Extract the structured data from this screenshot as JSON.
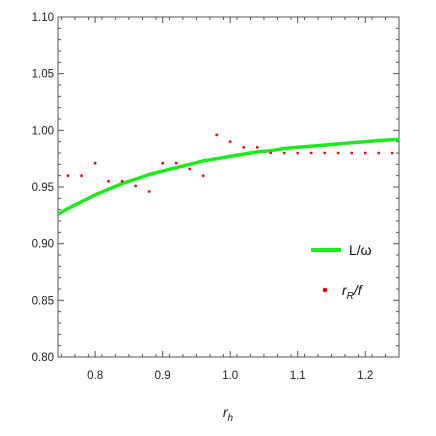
{
  "chart_data": {
    "type": "scatter",
    "xlabel": "r",
    "xlabel_sub": "h",
    "ylabel": "",
    "xlim": [
      0.745,
      1.25
    ],
    "ylim": [
      0.8,
      1.1
    ],
    "x_ticks": [
      0.8,
      0.9,
      1.0,
      1.1,
      1.2
    ],
    "x_tick_labels": [
      "0.8",
      "0.9",
      "1.0",
      "1.1",
      "1.2"
    ],
    "y_ticks": [
      0.8,
      0.85,
      0.9,
      0.95,
      1.0,
      1.05,
      1.1
    ],
    "y_tick_labels": [
      "0.80",
      "0.85",
      "0.90",
      "0.95",
      "1.00",
      "1.05",
      "1.10"
    ],
    "grid": false,
    "legend_position": "right",
    "series": [
      {
        "name": "L/ω",
        "kind": "line",
        "color": "#1ee81e",
        "x": [
          0.745,
          0.76,
          0.78,
          0.8,
          0.82,
          0.84,
          0.86,
          0.88,
          0.9,
          0.92,
          0.94,
          0.96,
          0.98,
          1.0,
          1.02,
          1.04,
          1.06,
          1.08,
          1.1,
          1.12,
          1.14,
          1.16,
          1.18,
          1.2,
          1.22,
          1.25
        ],
        "y": [
          0.926,
          0.931,
          0.937,
          0.943,
          0.948,
          0.953,
          0.957,
          0.961,
          0.964,
          0.967,
          0.97,
          0.973,
          0.975,
          0.977,
          0.979,
          0.981,
          0.982,
          0.984,
          0.985,
          0.986,
          0.987,
          0.988,
          0.989,
          0.99,
          0.991,
          0.992
        ]
      },
      {
        "name": "rR/f",
        "kind": "scatter",
        "color": "#e01010",
        "x": [
          0.76,
          0.78,
          0.8,
          0.82,
          0.84,
          0.86,
          0.88,
          0.9,
          0.92,
          0.94,
          0.96,
          0.98,
          1.0,
          1.02,
          1.04,
          1.06,
          1.08,
          1.1,
          1.12,
          1.14,
          1.16,
          1.18,
          1.2,
          1.22,
          1.24
        ],
        "y": [
          0.96,
          0.96,
          0.971,
          0.955,
          0.955,
          0.951,
          0.946,
          0.971,
          0.971,
          0.966,
          0.96,
          0.996,
          0.99,
          0.985,
          0.985,
          0.98,
          0.98,
          0.98,
          0.98,
          0.98,
          0.98,
          0.98,
          0.98,
          0.98,
          0.98
        ]
      }
    ],
    "legend": {
      "line_label": "L/ω",
      "dot_label_main": "r",
      "dot_label_sub": "R",
      "dot_label_rest": "/f"
    }
  }
}
